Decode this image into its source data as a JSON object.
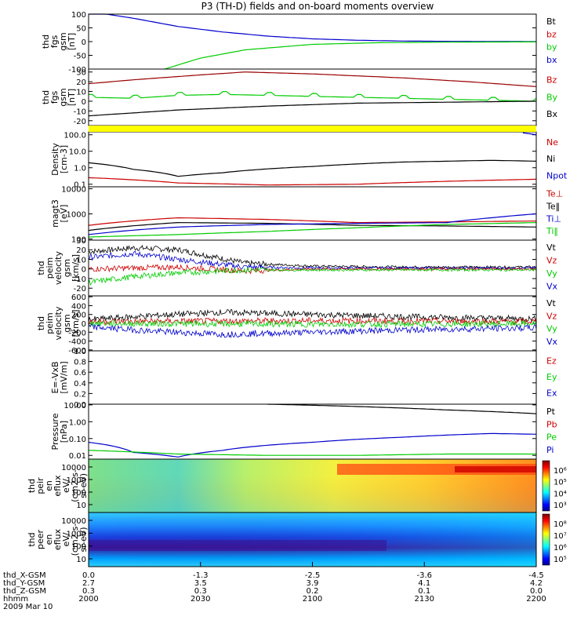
{
  "title": "P3 (TH-D) fields and on-board moments overview",
  "chart_data": [
    {
      "type": "line",
      "ylabel": [
        "thd",
        "fgs",
        "gsm",
        "[nT]"
      ],
      "yticks": [
        100,
        50,
        0,
        -50,
        -100
      ],
      "ylim": [
        -100,
        100
      ],
      "legend": [
        {
          "name": "Bt",
          "color": "#000000"
        },
        {
          "name": "bz",
          "color": "#cc0000"
        },
        {
          "name": "by",
          "color": "#00cc00"
        },
        {
          "name": "bx",
          "color": "#0000cc"
        }
      ],
      "series": [
        {
          "name": "bx",
          "color": "#0000cc",
          "x": [
            0,
            0.1,
            0.2,
            0.3,
            0.4,
            0.5,
            0.6,
            0.7,
            0.8,
            1
          ],
          "y": [
            110,
            85,
            55,
            35,
            20,
            10,
            5,
            2,
            1,
            0
          ]
        },
        {
          "name": "by",
          "color": "#00cc00",
          "x": [
            0.17,
            0.25,
            0.35,
            0.5,
            0.65,
            0.8,
            1
          ],
          "y": [
            -100,
            -60,
            -30,
            -10,
            -4,
            -2,
            -1
          ]
        }
      ]
    },
    {
      "type": "line",
      "ylabel": [
        "thd",
        "fgs",
        "gsm",
        "[nT]"
      ],
      "yticks": [
        30,
        20,
        10,
        0,
        -10,
        -20
      ],
      "ylim": [
        -25,
        33
      ],
      "legend": [
        {
          "name": "Bz",
          "color": "#cc0000"
        },
        {
          "name": "By",
          "color": "#00cc00"
        },
        {
          "name": "Bx",
          "color": "#000000"
        }
      ],
      "series": [
        {
          "name": "Bz",
          "color": "#990000",
          "x": [
            0,
            0.1,
            0.25,
            0.35,
            0.5,
            0.7,
            0.85,
            1
          ],
          "y": [
            18,
            22,
            27,
            30,
            28,
            24,
            20,
            15
          ]
        },
        {
          "name": "By",
          "color": "#00cc00",
          "x": [
            0,
            0.1,
            0.2,
            0.3,
            0.4,
            0.5,
            0.6,
            0.7,
            0.8,
            0.9,
            1
          ],
          "y": [
            4,
            3,
            6,
            7,
            6,
            5,
            4,
            3,
            2,
            1,
            0
          ]
        },
        {
          "name": "Bx",
          "color": "#000000",
          "x": [
            0,
            0.2,
            0.4,
            0.6,
            0.8,
            1
          ],
          "y": [
            -15,
            -9,
            -5,
            -2,
            -1,
            0
          ]
        }
      ]
    },
    {
      "type": "line",
      "ylabel": [
        "Density",
        "[cm-3]"
      ],
      "yticks": [
        "100.0",
        "10.0",
        "1.0",
        "0.1"
      ],
      "log": true,
      "ylim": [
        0.07,
        150
      ],
      "legend": [
        {
          "name": "Ne",
          "color": "#cc0000"
        },
        {
          "name": "Ni",
          "color": "#000000"
        },
        {
          "name": "Npot",
          "color": "#0000cc"
        }
      ],
      "series": [
        {
          "name": "Ni",
          "color": "#000000",
          "x": [
            0,
            0.1,
            0.2,
            0.3,
            0.5,
            0.7,
            0.9,
            1
          ],
          "y": [
            2.0,
            0.8,
            0.3,
            0.5,
            1.2,
            2.2,
            2.8,
            2.5
          ]
        },
        {
          "name": "Ne",
          "color": "#cc0000",
          "x": [
            0,
            0.2,
            0.4,
            0.6,
            0.8,
            1
          ],
          "y": [
            0.25,
            0.12,
            0.09,
            0.1,
            0.15,
            0.2
          ]
        },
        {
          "name": "Npot",
          "color": "#0000cc",
          "x": [
            0.97,
            1
          ],
          "y": [
            130,
            100
          ]
        }
      ]
    },
    {
      "type": "line",
      "ylabel": [
        "magt3",
        "[eV]"
      ],
      "yticks": [
        "10000",
        "1000",
        "100"
      ],
      "log": true,
      "ylim": [
        90,
        12000
      ],
      "legend": [
        {
          "name": "Te⊥",
          "color": "#cc0000"
        },
        {
          "name": "Te‖",
          "color": "#000000"
        },
        {
          "name": "Ti⊥",
          "color": "#0000cc"
        },
        {
          "name": "Ti‖",
          "color": "#00cc00"
        }
      ],
      "series": [
        {
          "name": "Te⊥",
          "color": "#cc0000",
          "x": [
            0,
            0.2,
            0.4,
            0.6,
            0.8,
            1
          ],
          "y": [
            350,
            700,
            600,
            450,
            480,
            520
          ]
        },
        {
          "name": "Te‖",
          "color": "#000000",
          "x": [
            0,
            0.2,
            0.4,
            0.6,
            0.8,
            1
          ],
          "y": [
            220,
            450,
            420,
            350,
            330,
            300
          ]
        },
        {
          "name": "Ti⊥",
          "color": "#0000cc",
          "x": [
            0,
            0.2,
            0.4,
            0.6,
            0.8,
            0.9,
            1
          ],
          "y": [
            150,
            300,
            380,
            420,
            450,
            700,
            1000
          ]
        },
        {
          "name": "Ti‖",
          "color": "#00cc00",
          "x": [
            0,
            0.2,
            0.4,
            0.6,
            0.8,
            1
          ],
          "y": [
            120,
            150,
            200,
            280,
            380,
            450
          ]
        }
      ]
    },
    {
      "type": "line",
      "ylabel": [
        "thd",
        "peim",
        "velocity",
        "gsm",
        "[km/s]"
      ],
      "yticks": [
        30,
        20,
        10,
        0,
        -10,
        -20
      ],
      "ylim": [
        -28,
        30
      ],
      "legend": [
        {
          "name": "Vt",
          "color": "#000000"
        },
        {
          "name": "Vz",
          "color": "#cc0000"
        },
        {
          "name": "Vy",
          "color": "#00cc00"
        },
        {
          "name": "Vx",
          "color": "#0000cc"
        }
      ],
      "series": [
        {
          "name": "Vt",
          "color": "#000000",
          "x": [
            0,
            0.1,
            0.2,
            0.35,
            0.5,
            0.7,
            1
          ],
          "y": [
            18,
            22,
            20,
            6,
            3,
            2,
            2
          ]
        },
        {
          "name": "Vx",
          "color": "#0000cc",
          "x": [
            0,
            0.1,
            0.2,
            0.35,
            0.5,
            1
          ],
          "y": [
            12,
            16,
            10,
            2,
            1,
            1
          ]
        },
        {
          "name": "Vz",
          "color": "#cc0000",
          "x": [
            0,
            0.2,
            0.35,
            0.5,
            1
          ],
          "y": [
            0,
            2,
            -2,
            0,
            0
          ]
        },
        {
          "name": "Vy",
          "color": "#00cc00",
          "x": [
            0,
            0.1,
            0.2,
            0.35,
            0.5,
            1
          ],
          "y": [
            -14,
            -8,
            -4,
            -1,
            -1,
            -1
          ]
        }
      ]
    },
    {
      "type": "line",
      "ylabel": [
        "thd",
        "peim",
        "velocity",
        "gsm",
        "[km/s]"
      ],
      "yticks": [
        600,
        400,
        200,
        0,
        -200,
        -400,
        -600
      ],
      "ylim": [
        -620,
        620
      ],
      "legend": [
        {
          "name": "Vt",
          "color": "#000000"
        },
        {
          "name": "Vz",
          "color": "#cc0000"
        },
        {
          "name": "Vy",
          "color": "#00cc00"
        },
        {
          "name": "Vx",
          "color": "#0000cc"
        }
      ],
      "series": [
        {
          "name": "Vt",
          "color": "#000000",
          "x": [
            0,
            0.15,
            0.3,
            0.5,
            0.7,
            1
          ],
          "y": [
            80,
            180,
            250,
            200,
            150,
            100
          ]
        },
        {
          "name": "Vz",
          "color": "#cc0000",
          "x": [
            0,
            0.5,
            1
          ],
          "y": [
            40,
            60,
            40
          ]
        },
        {
          "name": "Vy",
          "color": "#00cc00",
          "x": [
            0,
            0.5,
            1
          ],
          "y": [
            0,
            -20,
            -10
          ]
        },
        {
          "name": "Vx",
          "color": "#0000cc",
          "x": [
            0,
            0.15,
            0.3,
            0.5,
            0.7,
            1
          ],
          "y": [
            -80,
            -180,
            -250,
            -200,
            -150,
            -100
          ]
        }
      ]
    },
    {
      "type": "line",
      "ylabel": [
        "E=-VxB",
        "[mV/m]"
      ],
      "yticks": [
        "1.0",
        "0.8",
        "0.6",
        "0.4",
        "0.2",
        "0.0"
      ],
      "ylim": [
        0,
        1
      ],
      "legend": [
        {
          "name": "Ez",
          "color": "#cc0000"
        },
        {
          "name": "Ey",
          "color": "#00cc00"
        },
        {
          "name": "Ex",
          "color": "#0000cc"
        }
      ],
      "series": []
    },
    {
      "type": "line",
      "ylabel": [
        "Pressure",
        "[nPa]"
      ],
      "yticks": [
        "10.00",
        "1.00",
        "0.10",
        "0.01"
      ],
      "log": true,
      "ylim": [
        0.006,
        11
      ],
      "legend": [
        {
          "name": "Pt",
          "color": "#000000"
        },
        {
          "name": "Pb",
          "color": "#cc0000"
        },
        {
          "name": "Pe",
          "color": "#00cc00"
        },
        {
          "name": "Pi",
          "color": "#0000cc"
        }
      ],
      "series": [
        {
          "name": "Pt",
          "color": "#000000",
          "x": [
            0.4,
            0.6,
            0.8,
            1
          ],
          "y": [
            11,
            8,
            5,
            3
          ]
        },
        {
          "name": "Pi",
          "color": "#0000cc",
          "x": [
            0,
            0.1,
            0.2,
            0.3,
            0.5,
            0.7,
            0.9,
            1
          ],
          "y": [
            0.06,
            0.015,
            0.008,
            0.02,
            0.06,
            0.12,
            0.2,
            0.18
          ]
        },
        {
          "name": "Pe",
          "color": "#00cc00",
          "x": [
            0,
            0.2,
            0.4,
            0.6,
            0.8,
            1
          ],
          "y": [
            0.02,
            0.012,
            0.01,
            0.01,
            0.012,
            0.012
          ]
        }
      ]
    },
    {
      "type": "heatmap",
      "ylabel": [
        "thd",
        "peir",
        "en",
        "eflux",
        "eV/",
        "(cm2-s-",
        "sr-eV)"
      ],
      "yticks": [
        "10000",
        "1000",
        "100",
        "10"
      ],
      "colorbar": [
        "10⁶",
        "10⁵",
        "10⁴",
        "10³"
      ]
    },
    {
      "type": "heatmap",
      "ylabel": [
        "thd",
        "peer",
        "en",
        "eflux",
        "eV/",
        "(cm2-s-",
        "sr-eV)"
      ],
      "yticks": [
        "10000",
        "1000",
        "100",
        "10"
      ],
      "colorbar": [
        "10⁸",
        "10⁷",
        "10⁶",
        "10⁵"
      ]
    }
  ],
  "xaxis": {
    "rows": [
      {
        "label": "thd_X-GSM",
        "values": [
          "0.0",
          "-1.3",
          "-2.5",
          "-3.6",
          "-4.5"
        ]
      },
      {
        "label": "thd_Y-GSM",
        "values": [
          "2.7",
          "3.5",
          "3.9",
          "4.1",
          "4.2"
        ]
      },
      {
        "label": "thd_Z-GSM",
        "values": [
          "0.3",
          "0.3",
          "0.2",
          "0.1",
          "0.0"
        ]
      },
      {
        "label": "hhmm",
        "values": [
          "2000",
          "2030",
          "2100",
          "2130",
          "2200"
        ]
      }
    ],
    "date": "2009 Mar 10"
  }
}
